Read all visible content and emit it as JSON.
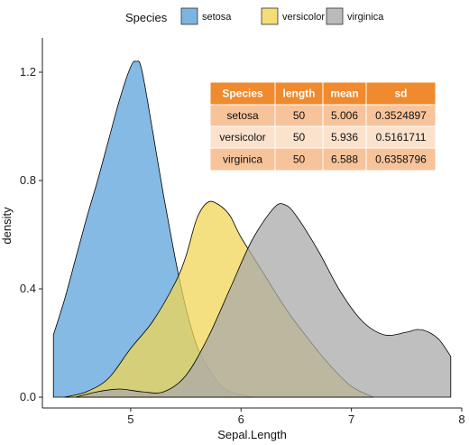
{
  "chart_data": {
    "type": "area",
    "xlabel": "Sepal.Length",
    "ylabel": "density",
    "xlim": [
      4.2,
      8.0
    ],
    "ylim": [
      -0.04,
      1.3
    ],
    "x_ticks": [
      5,
      6,
      7,
      8
    ],
    "y_ticks": [
      0.0,
      0.4,
      0.8,
      1.2
    ],
    "y_tick_labels": [
      "0.0",
      "0.4",
      "0.8",
      "1.2"
    ],
    "grid": false,
    "legend": {
      "title": "Species",
      "position": "top",
      "entries": [
        "setosa",
        "versicolor",
        "virginica"
      ]
    },
    "series": [
      {
        "name": "setosa",
        "color": "#5ba3d9",
        "x": [
          4.3,
          4.4,
          4.5,
          4.6,
          4.7,
          4.8,
          4.9,
          5.0,
          5.05,
          5.1,
          5.2,
          5.3,
          5.4,
          5.5,
          5.6,
          5.7,
          5.8,
          5.9,
          6.0,
          6.1
        ],
        "y": [
          0.23,
          0.36,
          0.51,
          0.66,
          0.8,
          0.95,
          1.1,
          1.22,
          1.24,
          1.21,
          0.98,
          0.74,
          0.52,
          0.33,
          0.19,
          0.11,
          0.05,
          0.02,
          0.01,
          0.0
        ]
      },
      {
        "name": "versicolor",
        "color": "#f0d555",
        "x": [
          4.4,
          4.6,
          4.8,
          5.0,
          5.2,
          5.4,
          5.5,
          5.6,
          5.7,
          5.8,
          5.9,
          6.0,
          6.2,
          6.4,
          6.6,
          6.8,
          7.0,
          7.2
        ],
        "y": [
          0.0,
          0.02,
          0.07,
          0.18,
          0.28,
          0.42,
          0.52,
          0.66,
          0.72,
          0.71,
          0.67,
          0.59,
          0.46,
          0.33,
          0.22,
          0.12,
          0.04,
          0.0
        ]
      },
      {
        "name": "virginica",
        "color": "#a9a9a9",
        "x": [
          4.5,
          4.7,
          4.9,
          5.1,
          5.3,
          5.5,
          5.7,
          5.9,
          6.1,
          6.3,
          6.4,
          6.5,
          6.7,
          6.9,
          7.1,
          7.3,
          7.5,
          7.6,
          7.7,
          7.8,
          7.9
        ],
        "y": [
          0.0,
          0.02,
          0.03,
          0.02,
          0.02,
          0.08,
          0.22,
          0.4,
          0.58,
          0.7,
          0.71,
          0.67,
          0.54,
          0.39,
          0.28,
          0.23,
          0.24,
          0.25,
          0.24,
          0.21,
          0.15
        ]
      }
    ],
    "table": {
      "headers": [
        "Species",
        "length",
        "mean",
        "sd"
      ],
      "rows": [
        [
          "setosa",
          "50",
          "5.006",
          "0.3524897"
        ],
        [
          "versicolor",
          "50",
          "5.936",
          "0.5161711"
        ],
        [
          "virginica",
          "50",
          "6.588",
          "0.6358796"
        ]
      ],
      "header_color": "#f08a2e",
      "row_colors": [
        "#f7c39a",
        "#fbe2cc",
        "#f7c39a"
      ]
    }
  }
}
